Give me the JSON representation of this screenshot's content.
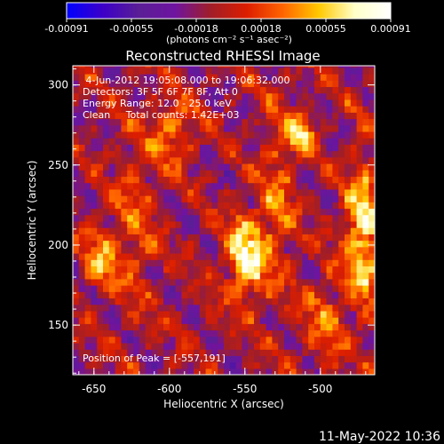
{
  "chart_data": {
    "type": "heatmap",
    "title": "Reconstructed RHESSI Image",
    "xlabel": "Heliocentric X (arcsec)",
    "ylabel": "Heliocentric Y (arcsec)",
    "xlim": [
      -664,
      -464
    ],
    "ylim": [
      119,
      312
    ],
    "x_ticks": [
      "-650",
      "-600",
      "-550",
      "-500"
    ],
    "x_tick_values": [
      -650,
      -600,
      -550,
      -500
    ],
    "y_ticks": [
      "150",
      "200",
      "250",
      "300"
    ],
    "y_tick_values": [
      150,
      200,
      250,
      300
    ],
    "colorbar": {
      "min": -0.00091,
      "max": 0.00091,
      "tick_labels": [
        "-0.00091",
        "-0.00055",
        "-0.00018",
        "0.00018",
        "0.00055",
        "0.00091"
      ],
      "unit_label": "(photons cm⁻² s⁻¹ asec⁻²)",
      "colors": [
        "#0000ff",
        "#3c00c8",
        "#5a1e96",
        "#6e14a0",
        "#a01e28",
        "#dc1e00",
        "#ff6400",
        "#ffc800",
        "#ffffc8",
        "#ffffff"
      ]
    },
    "info_lines": [
      " 4-Jun-2012 19:05:08.000 to 19:06:32.000",
      "Detectors: 3F 5F 6F 7F 8F, Att 0",
      "Energy Range: 12.0 - 25.0 keV",
      "Clean     Total counts: 1.42E+03"
    ],
    "peak_label": "Position of Peak = [-557,191]",
    "peak": [
      -557,
      191
    ],
    "hot_spots": [
      {
        "x": -551,
        "y": 191,
        "sx": 9,
        "sy": 18,
        "a": 0.0009
      },
      {
        "x": -474,
        "y": 205,
        "sx": 8,
        "sy": 32,
        "a": 0.0008
      },
      {
        "x": -648,
        "y": 190,
        "sx": 8,
        "sy": 14,
        "a": 0.00055
      },
      {
        "x": -515,
        "y": 268,
        "sx": 6,
        "sy": 8,
        "a": 0.0007
      },
      {
        "x": -600,
        "y": 270,
        "sx": 10,
        "sy": 14,
        "a": 0.00045
      },
      {
        "x": -625,
        "y": 215,
        "sx": 10,
        "sy": 40,
        "a": 0.0003
      },
      {
        "x": -530,
        "y": 230,
        "sx": 8,
        "sy": 40,
        "a": 0.00035
      },
      {
        "x": -500,
        "y": 150,
        "sx": 10,
        "sy": 20,
        "a": 0.00035
      }
    ]
  },
  "timestamp": "11-May-2022 10:36"
}
